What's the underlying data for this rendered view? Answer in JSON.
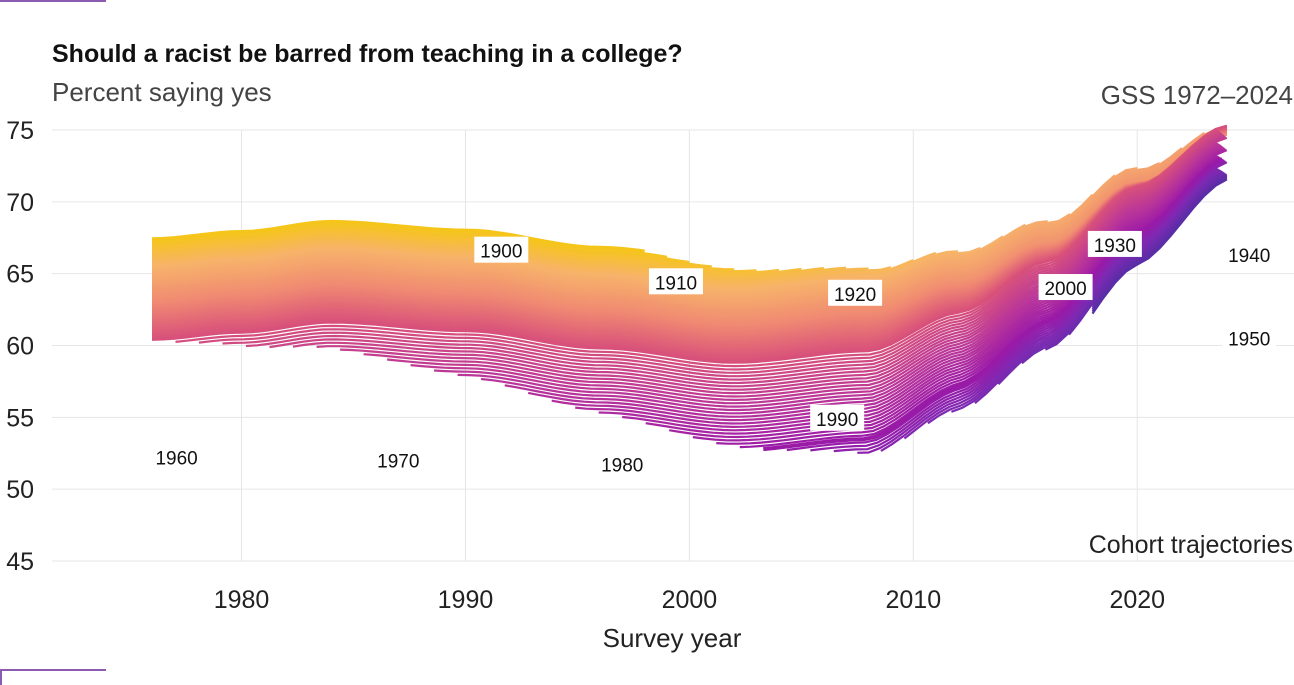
{
  "chart_data": {
    "type": "line",
    "title": "Should a racist be barred from teaching in a college?",
    "subtitle": "Percent saying yes",
    "source": "GSS 1972–2024",
    "xlabel": "Survey year",
    "ylabel": "",
    "caption": "Cohort trajectories",
    "xlim": [
      1971,
      2027
    ],
    "ylim": [
      45,
      75
    ],
    "x_ticks": [
      1980,
      1990,
      2000,
      2010,
      2020
    ],
    "y_ticks": [
      45,
      50,
      55,
      60,
      65,
      70,
      75
    ],
    "grid": true,
    "legend": "none",
    "cohort_range": [
      1900,
      2000
    ],
    "cohort_labels": [
      {
        "cohort": "1900",
        "x": 1991.6,
        "y": 66.6
      },
      {
        "cohort": "1910",
        "x": 1999.4,
        "y": 64.4
      },
      {
        "cohort": "1920",
        "x": 2007.4,
        "y": 63.6
      },
      {
        "cohort": "1930",
        "x": 2019.0,
        "y": 67.0
      },
      {
        "cohort": "1940",
        "x": 2025.0,
        "y": 66.3
      },
      {
        "cohort": "1950",
        "x": 2025.0,
        "y": 60.5
      },
      {
        "cohort": "1960",
        "x": 1977.1,
        "y": 52.2
      },
      {
        "cohort": "1970",
        "x": 1987.0,
        "y": 52.0
      },
      {
        "cohort": "1980",
        "x": 1997.0,
        "y": 51.7
      },
      {
        "cohort": "1990",
        "x": 2006.6,
        "y": 54.9
      },
      {
        "cohort": "2000",
        "x": 2016.8,
        "y": 64.0
      }
    ],
    "series": [
      {
        "name": "1900",
        "start": 1976,
        "end": 2002,
        "offset": 19.0
      },
      {
        "name": "1910",
        "start": 1976,
        "end": 2006,
        "offset": 17.8
      },
      {
        "name": "1920",
        "start": 1976,
        "end": 2010,
        "offset": 16.6
      },
      {
        "name": "1930",
        "start": 1976,
        "end": 2014,
        "offset": 15.3
      },
      {
        "name": "1940",
        "start": 1976,
        "end": 2018,
        "offset": 14.1
      },
      {
        "name": "1950",
        "start": 1976,
        "end": 2020,
        "offset": 12.9
      },
      {
        "name": "1960",
        "start": 1980,
        "end": 2022,
        "offset": 11.7
      },
      {
        "name": "1970",
        "start": 1988,
        "end": 2024,
        "offset": 10.4
      },
      {
        "name": "1980",
        "start": 1998,
        "end": 2024,
        "offset": 9.2
      },
      {
        "name": "1990",
        "start": 2008,
        "end": 2024,
        "offset": 8.0
      },
      {
        "name": "2000",
        "start": 2018,
        "end": 2024,
        "offset": 6.8
      }
    ]
  }
}
